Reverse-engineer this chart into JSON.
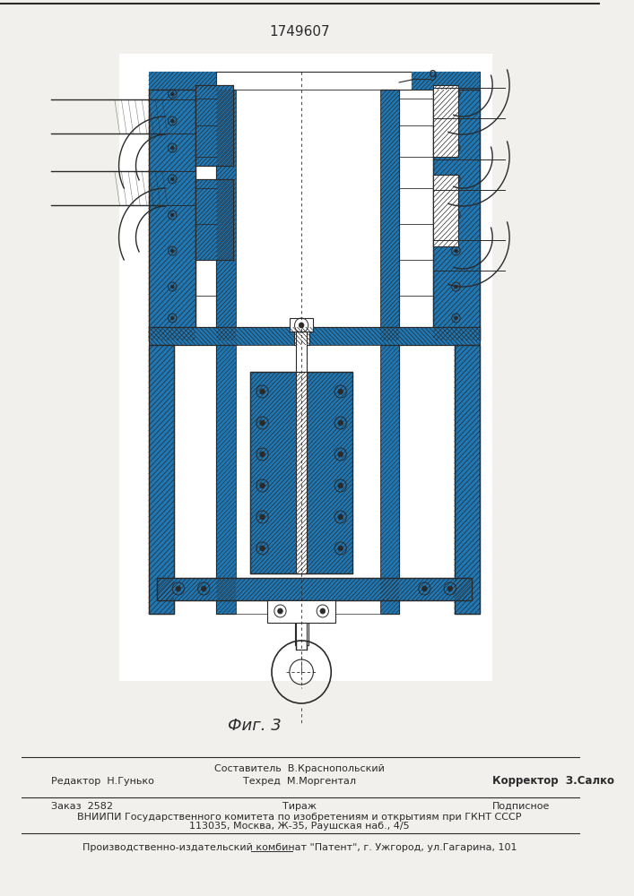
{
  "patent_number": "1749607",
  "fig_label": "Фиг. 3",
  "label_9": "9",
  "bg_color": "#f2f0ed",
  "line_color": "#2a2a2a",
  "top_line": true,
  "bottom": {
    "sestavitel": "Составитель  В.Краснопольский",
    "tehred": "Техред  М.Моргентал",
    "korrektor": "Корректор  З.Салко",
    "redaktor": "Редактор  Н.Гунько",
    "zakaz": "Заказ  2582",
    "tirazh": "Тираж",
    "podpisnoe": "Подписное",
    "vniiipi": "ВНИИПИ Государственного комитета по изобретениям и открытиям при ГКНТ СССР",
    "address": "113035, Москва, Ж-35, Раушская наб., 4/5",
    "patent_plant": "Производственно-издательский комбинат \"Патент\", г. Ужгород, ул.Гагарина, 101"
  }
}
